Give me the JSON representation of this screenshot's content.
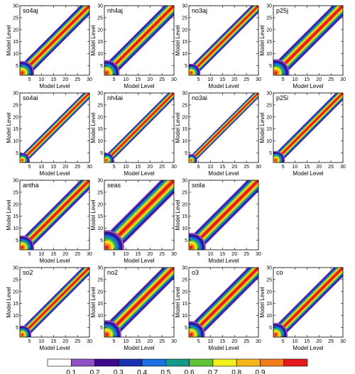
{
  "chart_data": {
    "type": "heatmap",
    "description_type": "correlation matrices of model levels (filled contour panels)",
    "xlabel": "Model Level",
    "ylabel": "Model Level",
    "xlim": [
      1,
      30
    ],
    "ylim": [
      1,
      30
    ],
    "ticks": [
      5,
      10,
      15,
      20,
      25,
      30
    ],
    "panels": [
      {
        "label": "so4aj",
        "row": 0,
        "col": 0,
        "width": 2.6
      },
      {
        "label": "nh4aj",
        "row": 0,
        "col": 1,
        "width": 2.8
      },
      {
        "label": "no3aj",
        "row": 0,
        "col": 2,
        "width": 2.0
      },
      {
        "label": "p25j",
        "row": 0,
        "col": 3,
        "width": 3.0
      },
      {
        "label": "so4ai",
        "row": 1,
        "col": 0,
        "width": 1.6
      },
      {
        "label": "nh4ai",
        "row": 1,
        "col": 1,
        "width": 1.6
      },
      {
        "label": "no3ai",
        "row": 1,
        "col": 2,
        "width": 1.3
      },
      {
        "label": "p25i",
        "row": 1,
        "col": 3,
        "width": 2.0
      },
      {
        "label": "antha",
        "row": 2,
        "col": 0,
        "width": 2.6
      },
      {
        "label": "seas",
        "row": 2,
        "col": 1,
        "width": 3.8
      },
      {
        "label": "soila",
        "row": 2,
        "col": 2,
        "width": 3.2
      },
      {
        "label": "so2",
        "row": 3,
        "col": 0,
        "width": 2.0
      },
      {
        "label": "no2",
        "row": 3,
        "col": 1,
        "width": 3.2
      },
      {
        "label": "o3",
        "row": 3,
        "col": 2,
        "width": 3.0
      },
      {
        "label": "co",
        "row": 3,
        "col": 3,
        "width": 2.6
      }
    ],
    "colorbar": {
      "levels": [
        "0.1",
        "0.2",
        "0.3",
        "0.4",
        "0.5",
        "0.6",
        "0.7",
        "0.8",
        "0.9"
      ],
      "colors": [
        "#ffffff",
        "#8e52c4",
        "#3d0a8c",
        "#1a2eb0",
        "#1b6fe0",
        "#13988a",
        "#5fc43a",
        "#f2ef1e",
        "#f7b51a",
        "#f07c1c",
        "#e21a1a"
      ]
    }
  }
}
